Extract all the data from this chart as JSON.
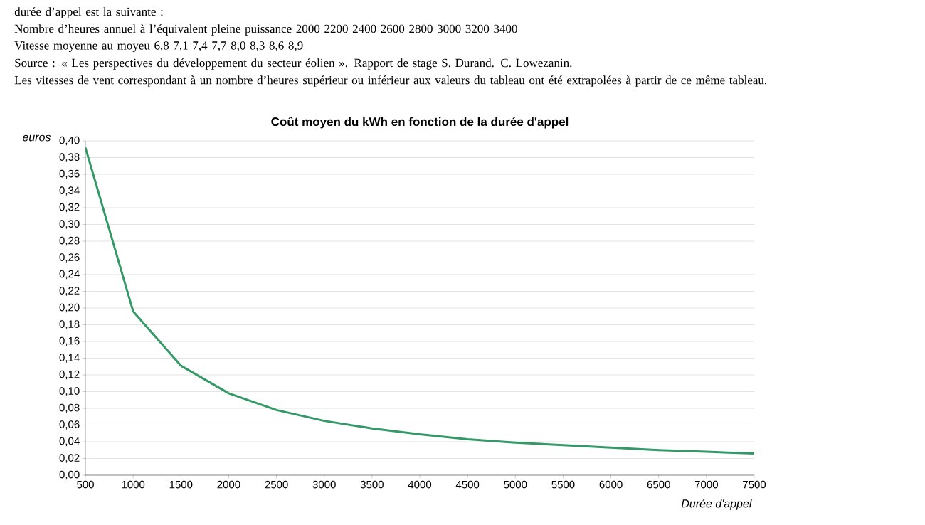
{
  "chart_data": {
    "type": "line",
    "title": "Coût moyen du kWh en fonction de la durée d'appel",
    "xlabel": "Durée d'appel",
    "ylabel": "euros",
    "x": [
      500,
      1000,
      1500,
      2000,
      2500,
      3000,
      3500,
      4000,
      4500,
      5000,
      5500,
      6000,
      6500,
      7000,
      7500
    ],
    "series": [
      {
        "color": "#339966",
        "values": [
          0.392,
          0.196,
          0.131,
          0.098,
          0.078,
          0.065,
          0.056,
          0.049,
          0.043,
          0.039,
          0.036,
          0.033,
          0.03,
          0.028,
          0.026
        ]
      }
    ],
    "xlim": [
      500,
      7500
    ],
    "xticks": [
      500,
      1000,
      1500,
      2000,
      2500,
      3000,
      3500,
      4000,
      4500,
      5000,
      5500,
      6000,
      6500,
      7000,
      7500
    ],
    "ylim": [
      0,
      0.4
    ],
    "yticks": [
      {
        "value": 0,
        "label": "0,00"
      },
      {
        "value": 0.02,
        "label": "0,02"
      },
      {
        "value": 0.04,
        "label": "0,04"
      },
      {
        "value": 0.06,
        "label": "0,06"
      },
      {
        "value": 0.08,
        "label": "0,08"
      },
      {
        "value": 0.1,
        "label": "0,10"
      },
      {
        "value": 0.12,
        "label": "0,12"
      },
      {
        "value": 0.14,
        "label": "0,14"
      },
      {
        "value": 0.16,
        "label": "0,16"
      },
      {
        "value": 0.18,
        "label": "0,18"
      },
      {
        "value": 0.2,
        "label": "0,20"
      },
      {
        "value": 0.22,
        "label": "0,22"
      },
      {
        "value": 0.24,
        "label": "0,24"
      },
      {
        "value": 0.26,
        "label": "0,26"
      },
      {
        "value": 0.28,
        "label": "0,28"
      },
      {
        "value": 0.3,
        "label": "0,30"
      },
      {
        "value": 0.32,
        "label": "0,32"
      },
      {
        "value": 0.34,
        "label": "0,34"
      },
      {
        "value": 0.36,
        "label": "0,36"
      },
      {
        "value": 0.38,
        "label": "0,38"
      },
      {
        "value": 0.4,
        "label": "0,40"
      }
    ],
    "grid": "y",
    "marker": "none",
    "line_style": "solid",
    "annotations": [
      "durée d’appel est la suivante :",
      "Nombre d’heures annuel à l’équivalent pleine puissance     2000   2200   2400   2600   2800   3000   3200   3400",
      "Vitesse moyenne au moyeu     6,8   7,1   7,4   7,7   8,0   8,3   8,6   8,9",
      "Source : « Les perspectives du développement du secteur éolien ». Rapport de stage S. Durand. C. Lowezanin.",
      "Les vitesses de vent correspondant à un nombre d’heures supérieur ou inférieur aux valeurs du tableau ont été extrapolées à partir de ce même tableau."
    ]
  }
}
